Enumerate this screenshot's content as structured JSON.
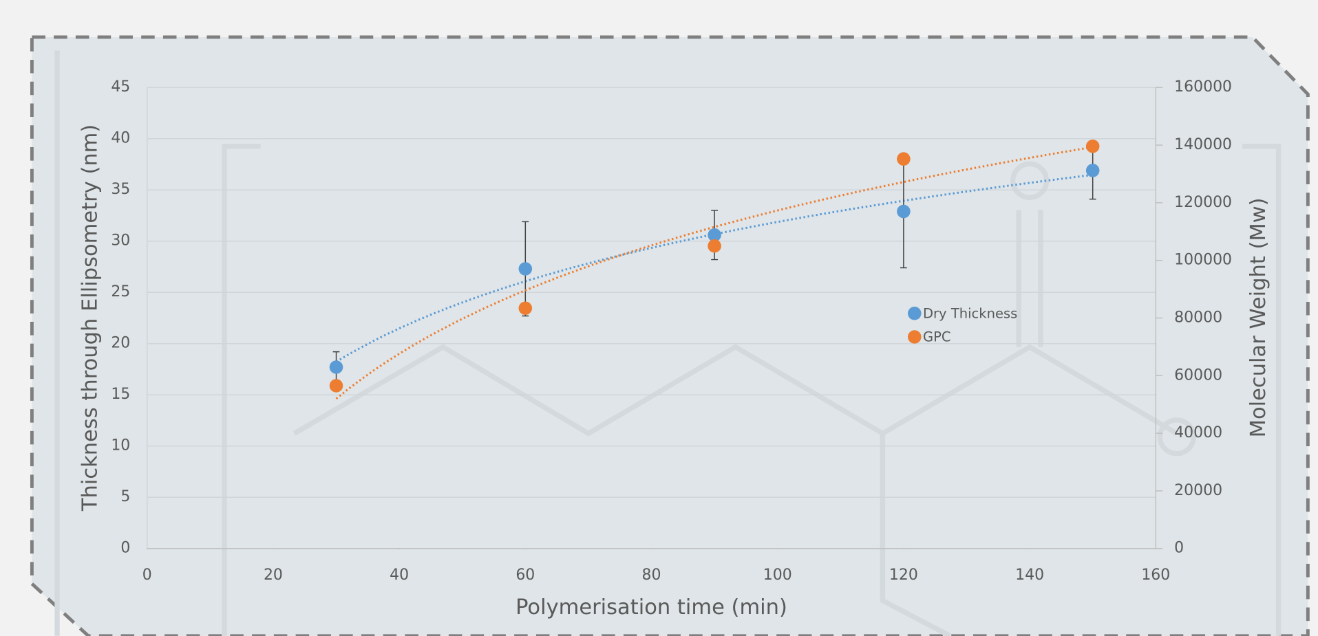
{
  "chart_data": {
    "type": "scatter",
    "x_label": "Polymerisation time (min)",
    "y_label": "Thickness through Ellipsometry (nm)",
    "y2_label": "Molecular Weight (Mw)",
    "xlim": [
      0,
      160
    ],
    "xticks": [
      0,
      20,
      40,
      60,
      80,
      100,
      120,
      140,
      160
    ],
    "ylim": [
      0,
      45
    ],
    "yticks": [
      0,
      5,
      10,
      15,
      20,
      25,
      30,
      35,
      40,
      45
    ],
    "y2lim": [
      0,
      160000
    ],
    "y2ticks": [
      0,
      20000,
      40000,
      60000,
      80000,
      100000,
      120000,
      140000,
      160000
    ],
    "grid": true,
    "trendline": "logarithmic",
    "series": [
      {
        "name": "Dry Thickness",
        "color": "#5b9bd5",
        "x": [
          30,
          60,
          90,
          120,
          150
        ],
        "values": [
          17.7,
          27.3,
          30.6,
          32.9,
          36.9
        ],
        "errors": [
          1.5,
          4.6,
          2.4,
          5.5,
          2.8
        ]
      },
      {
        "name": "GPC",
        "color": "#ed7d31",
        "axis": "y2",
        "x": [
          30,
          60,
          90,
          120,
          150
        ],
        "values": [
          56500,
          83400,
          105000,
          135200,
          139600
        ]
      }
    ]
  }
}
